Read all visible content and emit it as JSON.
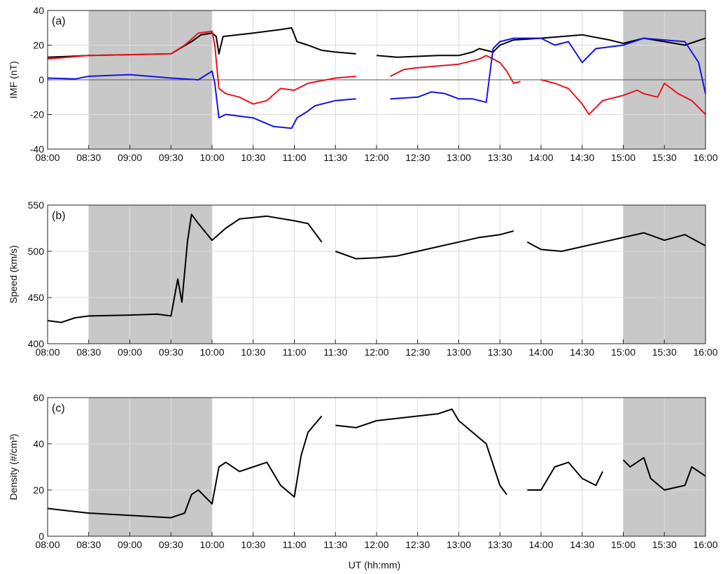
{
  "xlabel": "UT (hh:mm)",
  "x_ticks": [
    "08:00",
    "08:30",
    "09:00",
    "09:30",
    "10:00",
    "10:30",
    "11:00",
    "11:30",
    "12:00",
    "12:30",
    "13:00",
    "13:30",
    "14:00",
    "14:30",
    "15:00",
    "15:30",
    "16:00"
  ],
  "shaded_intervals": [
    [
      "08:30",
      "10:00"
    ],
    [
      "15:00",
      "16:00"
    ]
  ],
  "colors": {
    "black": "#000000",
    "red": "#e8141c",
    "blue": "#1414e6",
    "shade": "#c8c8c8",
    "grid": "#dcdcdc"
  },
  "chart_data": [
    {
      "type": "line",
      "label": "(a)",
      "ylabel": "IMF (nT)",
      "ylim": [
        -40,
        40
      ],
      "yticks": [
        -40,
        -20,
        0,
        20,
        40
      ],
      "xlim": [
        "08:00",
        "16:00"
      ],
      "grid": true,
      "zero_line": true,
      "series": [
        {
          "color": "black",
          "points": [
            [
              "08:00",
              13
            ],
            [
              "08:15",
              13.5
            ],
            [
              "08:30",
              14
            ],
            [
              "09:00",
              14.5
            ],
            [
              "09:30",
              15
            ],
            [
              "09:45",
              22
            ],
            [
              "09:52",
              26
            ],
            [
              "10:00",
              27
            ],
            [
              "10:03",
              25
            ],
            [
              "10:05",
              15
            ],
            [
              "10:08",
              25
            ],
            [
              "10:30",
              27
            ],
            [
              "10:50",
              29
            ],
            [
              "10:58",
              30
            ],
            [
              "11:02",
              22
            ],
            [
              "11:10",
              20
            ],
            [
              "11:20",
              17
            ],
            [
              "11:30",
              16
            ],
            [
              "11:45",
              15
            ],
            [
              "11:55",
              null
            ],
            [
              "12:00",
              14
            ],
            [
              "12:15",
              13
            ],
            [
              "12:45",
              14
            ],
            [
              "13:00",
              14
            ],
            [
              "13:10",
              16
            ],
            [
              "13:15",
              18
            ],
            [
              "13:25",
              16
            ],
            [
              "13:30",
              20
            ],
            [
              "13:40",
              23
            ],
            [
              "14:00",
              24
            ],
            [
              "14:30",
              26
            ],
            [
              "14:50",
              23
            ],
            [
              "15:00",
              21
            ],
            [
              "15:15",
              24
            ],
            [
              "15:30",
              22
            ],
            [
              "15:45",
              20
            ],
            [
              "16:00",
              24
            ]
          ]
        },
        {
          "color": "red",
          "points": [
            [
              "08:00",
              12
            ],
            [
              "08:30",
              14
            ],
            [
              "09:00",
              14.5
            ],
            [
              "09:30",
              15
            ],
            [
              "09:40",
              20
            ],
            [
              "09:50",
              27
            ],
            [
              "10:00",
              28
            ],
            [
              "10:02",
              20
            ],
            [
              "10:05",
              -5
            ],
            [
              "10:10",
              -8
            ],
            [
              "10:20",
              -10
            ],
            [
              "10:30",
              -14
            ],
            [
              "10:40",
              -12
            ],
            [
              "10:50",
              -5
            ],
            [
              "11:00",
              -6
            ],
            [
              "11:10",
              -2
            ],
            [
              "11:30",
              1
            ],
            [
              "11:45",
              2
            ],
            [
              "12:00",
              null
            ],
            [
              "12:10",
              2
            ],
            [
              "12:20",
              6
            ],
            [
              "12:30",
              7
            ],
            [
              "12:45",
              8
            ],
            [
              "13:00",
              9
            ],
            [
              "13:15",
              12
            ],
            [
              "13:20",
              14
            ],
            [
              "13:30",
              10
            ],
            [
              "13:35",
              5
            ],
            [
              "13:40",
              -2
            ],
            [
              "13:45",
              -1
            ],
            [
              "13:50",
              null
            ],
            [
              "14:00",
              0
            ],
            [
              "14:10",
              -2
            ],
            [
              "14:20",
              -5
            ],
            [
              "14:30",
              -14
            ],
            [
              "14:35",
              -20
            ],
            [
              "14:45",
              -12
            ],
            [
              "15:00",
              -9
            ],
            [
              "15:10",
              -6
            ],
            [
              "15:15",
              -8
            ],
            [
              "15:25",
              -10
            ],
            [
              "15:30",
              -2
            ],
            [
              "15:40",
              -8
            ],
            [
              "15:50",
              -12
            ],
            [
              "16:00",
              -20
            ]
          ]
        },
        {
          "color": "blue",
          "points": [
            [
              "08:00",
              1
            ],
            [
              "08:20",
              0.5
            ],
            [
              "08:30",
              2
            ],
            [
              "09:00",
              3
            ],
            [
              "09:30",
              1
            ],
            [
              "09:50",
              0
            ],
            [
              "10:00",
              5
            ],
            [
              "10:02",
              -2
            ],
            [
              "10:05",
              -22
            ],
            [
              "10:10",
              -20
            ],
            [
              "10:30",
              -22
            ],
            [
              "10:45",
              -27
            ],
            [
              "10:58",
              -28
            ],
            [
              "11:02",
              -22
            ],
            [
              "11:10",
              -18
            ],
            [
              "11:15",
              -15
            ],
            [
              "11:30",
              -12
            ],
            [
              "11:45",
              -11
            ],
            [
              "12:00",
              null
            ],
            [
              "12:10",
              -11
            ],
            [
              "12:30",
              -10
            ],
            [
              "12:40",
              -7
            ],
            [
              "12:50",
              -8
            ],
            [
              "13:00",
              -11
            ],
            [
              "13:10",
              -11
            ],
            [
              "13:15",
              -12
            ],
            [
              "13:20",
              -13
            ],
            [
              "13:25",
              18
            ],
            [
              "13:30",
              22
            ],
            [
              "13:40",
              24
            ],
            [
              "14:00",
              24
            ],
            [
              "14:10",
              20
            ],
            [
              "14:20",
              22
            ],
            [
              "14:30",
              10
            ],
            [
              "14:40",
              18
            ],
            [
              "15:00",
              20
            ],
            [
              "15:15",
              24
            ],
            [
              "15:30",
              23
            ],
            [
              "15:45",
              22
            ],
            [
              "15:55",
              10
            ],
            [
              "16:00",
              -8
            ]
          ]
        }
      ]
    },
    {
      "type": "line",
      "label": "(b)",
      "ylabel": "Speed (km/s)",
      "ylim": [
        400,
        550
      ],
      "yticks": [
        400,
        450,
        500,
        550
      ],
      "xlim": [
        "08:00",
        "16:00"
      ],
      "grid": true,
      "series": [
        {
          "color": "black",
          "points": [
            [
              "08:00",
              425
            ],
            [
              "08:10",
              423
            ],
            [
              "08:20",
              428
            ],
            [
              "08:30",
              430
            ],
            [
              "09:00",
              431
            ],
            [
              "09:20",
              432
            ],
            [
              "09:30",
              430
            ],
            [
              "09:35",
              470
            ],
            [
              "09:38",
              445
            ],
            [
              "09:42",
              510
            ],
            [
              "09:45",
              540
            ],
            [
              "09:50",
              530
            ],
            [
              "10:00",
              512
            ],
            [
              "10:10",
              525
            ],
            [
              "10:20",
              535
            ],
            [
              "10:40",
              538
            ],
            [
              "11:00",
              533
            ],
            [
              "11:10",
              530
            ],
            [
              "11:20",
              510
            ],
            [
              "11:25",
              null
            ],
            [
              "11:30",
              500
            ],
            [
              "11:45",
              492
            ],
            [
              "12:00",
              493
            ],
            [
              "12:15",
              495
            ],
            [
              "12:30",
              500
            ],
            [
              "12:45",
              505
            ],
            [
              "13:00",
              510
            ],
            [
              "13:15",
              515
            ],
            [
              "13:30",
              518
            ],
            [
              "13:40",
              522
            ],
            [
              "13:45",
              null
            ],
            [
              "13:50",
              510
            ],
            [
              "14:00",
              502
            ],
            [
              "14:15",
              500
            ],
            [
              "14:30",
              505
            ],
            [
              "14:45",
              510
            ],
            [
              "15:00",
              515
            ],
            [
              "15:15",
              520
            ],
            [
              "15:30",
              512
            ],
            [
              "15:45",
              518
            ],
            [
              "16:00",
              506
            ]
          ]
        }
      ]
    },
    {
      "type": "line",
      "label": "(c)",
      "ylabel": "Density (#/cm³)",
      "ylim": [
        0,
        60
      ],
      "yticks": [
        0,
        20,
        40,
        60
      ],
      "xlim": [
        "08:00",
        "16:00"
      ],
      "grid": true,
      "series": [
        {
          "color": "black",
          "points": [
            [
              "08:00",
              12
            ],
            [
              "08:15",
              11
            ],
            [
              "08:30",
              10
            ],
            [
              "09:00",
              9
            ],
            [
              "09:30",
              8
            ],
            [
              "09:40",
              10
            ],
            [
              "09:45",
              18
            ],
            [
              "09:50",
              20
            ],
            [
              "10:00",
              14
            ],
            [
              "10:05",
              30
            ],
            [
              "10:10",
              32
            ],
            [
              "10:20",
              28
            ],
            [
              "10:30",
              30
            ],
            [
              "10:40",
              32
            ],
            [
              "10:50",
              22
            ],
            [
              "11:00",
              17
            ],
            [
              "11:05",
              35
            ],
            [
              "11:10",
              45
            ],
            [
              "11:20",
              52
            ],
            [
              "11:25",
              null
            ],
            [
              "11:30",
              48
            ],
            [
              "11:45",
              47
            ],
            [
              "12:00",
              50
            ],
            [
              "12:30",
              52
            ],
            [
              "12:45",
              53
            ],
            [
              "12:55",
              55
            ],
            [
              "13:00",
              50
            ],
            [
              "13:10",
              45
            ],
            [
              "13:20",
              40
            ],
            [
              "13:30",
              22
            ],
            [
              "13:35",
              18
            ],
            [
              "13:45",
              null
            ],
            [
              "13:50",
              20
            ],
            [
              "14:00",
              20
            ],
            [
              "14:10",
              30
            ],
            [
              "14:20",
              32
            ],
            [
              "14:30",
              25
            ],
            [
              "14:40",
              22
            ],
            [
              "14:45",
              28
            ],
            [
              "14:50",
              null
            ],
            [
              "15:00",
              33
            ],
            [
              "15:05",
              30
            ],
            [
              "15:15",
              34
            ],
            [
              "15:20",
              25
            ],
            [
              "15:30",
              20
            ],
            [
              "15:45",
              22
            ],
            [
              "15:50",
              30
            ],
            [
              "16:00",
              26
            ]
          ]
        }
      ]
    }
  ]
}
